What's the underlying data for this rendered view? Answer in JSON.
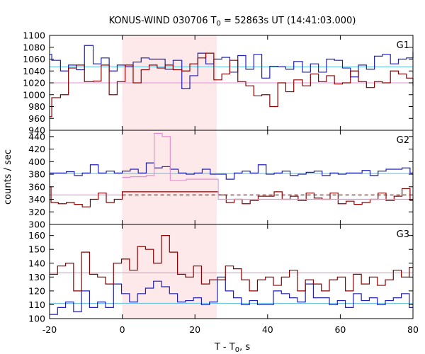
{
  "chart_data": {
    "type": "line",
    "title_main": "KONUS-WIND 030706 T",
    "title_sub": "0",
    "title_rest": " = 52863s UT (14:41:03.000)",
    "xlabel_main": "T - T",
    "xlabel_sub": "0",
    "xlabel_rest": ", s",
    "ylabel": "counts / sec",
    "xlim": [
      -20,
      80
    ],
    "x_ticks": [
      -20,
      0,
      20,
      40,
      60,
      80
    ],
    "x_tick_labels": [
      "-20",
      "0",
      "20",
      "40",
      "60",
      "80"
    ],
    "highlight_interval": [
      0,
      26
    ],
    "colors": {
      "blue": "#1f1fb4",
      "red": "#8b0000",
      "cyan": "#6ec6e6",
      "pink": "#e58fd1",
      "shade": "#fde9ea"
    },
    "panels": [
      {
        "label": "G1",
        "ylim": [
          940,
          1100
        ],
        "y_ticks": [
          940,
          960,
          980,
          1000,
          1020,
          1040,
          1060,
          1080,
          1100
        ],
        "y_tick_labels": [
          "940",
          "960",
          "980",
          "1000",
          "1020",
          "1040",
          "1060",
          "1080",
          "1100"
        ],
        "series": [
          {
            "color": "blue",
            "x": [
              -20,
              -19.4,
              -17,
              -14.8,
              -12.6,
              -10.4,
              -8,
              -5.8,
              -3.6,
              -1.4,
              0.8,
              3,
              5.2,
              7.4,
              9.6,
              11.8,
              14,
              16.4,
              18.6,
              20.8,
              23,
              25.2,
              27.4,
              29.6,
              31.8,
              34,
              36.2,
              38.4,
              40.6,
              42.8,
              45,
              47.2,
              49.6,
              51.8,
              54,
              56.2,
              58.4,
              60.6,
              62.8,
              65,
              67.2,
              69.4,
              71.6,
              73.8,
              76,
              78.2,
              80
            ],
            "y": [
              1068,
              1058,
              1040,
              1050,
              1042,
              1083,
              1052,
              1062,
              1040,
              1050,
              1047,
              1055,
              1062,
              1060,
              1060,
              1043,
              1058,
              1010,
              1032,
              1070,
              1052,
              1060,
              1063,
              1038,
              1066,
              1043,
              1068,
              1028,
              1048,
              1047,
              1043,
              1056,
              1038,
              1052,
              1038,
              1060,
              1058,
              1045,
              1030,
              1050,
              1043,
              1065,
              1068,
              1052,
              1060,
              1062,
              1072
            ]
          },
          {
            "color": "red",
            "x": [
              -20,
              -19.4,
              -17,
              -14.8,
              -12.6,
              -10.4,
              -8,
              -5.8,
              -3.6,
              -1.4,
              0.8,
              3,
              5.2,
              7.4,
              9.6,
              11.8,
              14,
              16.4,
              18.6,
              20.8,
              23,
              25.2,
              27.4,
              29.6,
              31.8,
              34,
              36.2,
              38.4,
              40.6,
              42.8,
              45,
              47.2,
              49.6,
              51.8,
              54,
              56.2,
              58.4,
              60.6,
              62.8,
              65,
              67.2,
              69.4,
              71.6,
              73.8,
              76,
              78.2,
              80
            ],
            "y": [
              963,
              995,
              1000,
              1045,
              1050,
              1022,
              1023,
              1050,
              1000,
              1022,
              1050,
              1020,
              1042,
              1050,
              1045,
              1050,
              1042,
              1040,
              1052,
              1062,
              1070,
              1025,
              1035,
              1058,
              1022,
              1015,
              998,
              1000,
              980,
              1020,
              1005,
              1025,
              1015,
              1035,
              1022,
              1032,
              1018,
              1020,
              1040,
              1022,
              1012,
              1022,
              1020,
              1040,
              1035,
              1028,
              1015
            ]
          }
        ],
        "reference_lines": [
          {
            "color": "cyan",
            "y": 1047,
            "x_from": -20,
            "x_to": 80,
            "dashed": false
          },
          {
            "color": "pink",
            "y": 1020,
            "x_from": -20,
            "x_to": 80,
            "dashed": false
          }
        ]
      },
      {
        "label": "G2",
        "ylim": [
          300,
          450
        ],
        "y_ticks": [
          300,
          320,
          340,
          360,
          380,
          400,
          420,
          440
        ],
        "y_tick_labels": [
          "300",
          "320",
          "340",
          "360",
          "380",
          "400",
          "420",
          "440"
        ],
        "series": [
          {
            "color": "blue",
            "x": [
              -20,
              -17.6,
              -15.4,
              -13.2,
              -11,
              -8.8,
              -6.6,
              -4.4,
              -2.2,
              0,
              2.2,
              4.4,
              6.6,
              8.8,
              11,
              13.2,
              15.4,
              17.6,
              19.8,
              22,
              24.2,
              26.4,
              28.6,
              30.8,
              33,
              35.2,
              37.4,
              39.6,
              41.8,
              44,
              46.2,
              48.4,
              50.6,
              52.8,
              55,
              57.2,
              59.4,
              61.6,
              63.8,
              66,
              68.2,
              70.4,
              72.6,
              74.8,
              77,
              79.2,
              80
            ],
            "y": [
              382,
              382,
              384,
              378,
              382,
              395,
              382,
              385,
              382,
              385,
              388,
              382,
              398,
              390,
              392,
              388,
              382,
              380,
              382,
              388,
              380,
              380,
              372,
              382,
              385,
              382,
              395,
              380,
              382,
              385,
              378,
              380,
              383,
              385,
              378,
              382,
              380,
              382,
              382,
              386,
              378,
              385,
              388,
              388,
              390,
              382,
              382
            ]
          },
          {
            "color": "red",
            "x": [
              -20,
              -19.6,
              -17.6,
              -15.4,
              -13.2,
              -11,
              -8.8,
              -6.6,
              -4.4,
              -2.2,
              0,
              26.4,
              28.6,
              30.8,
              33,
              35.2,
              37.4,
              39.6,
              41.8,
              44,
              46.2,
              48.4,
              50.6,
              52.8,
              55,
              57.2,
              59.4,
              61.6,
              63.8,
              66,
              68.2,
              70.4,
              72.6,
              74.8,
              77,
              79.2,
              80
            ],
            "y": [
              360,
              335,
              333,
              335,
              332,
              328,
              340,
              350,
              335,
              340,
              352,
              347,
              335,
              340,
              333,
              338,
              345,
              345,
              352,
              340,
              345,
              338,
              350,
              342,
              340,
              350,
              333,
              337,
              332,
              335,
              340,
              350,
              338,
              345,
              357,
              338,
              338
            ]
          },
          {
            "color": "pink",
            "x": [
              0,
              2.2,
              6.6,
              8.8,
              11,
              13.2,
              15.4,
              17.6,
              19.8,
              22,
              24.2,
              26.4,
              80
            ],
            "y": [
              375,
              376,
              378,
              445,
              440,
              370,
              370,
              372,
              372,
              372,
              372,
              340,
              343
            ]
          }
        ],
        "reference_lines": [
          {
            "color": "cyan",
            "y": 381,
            "x_from": -20,
            "x_to": 80,
            "dashed": false
          },
          {
            "color": "pink",
            "y": 347,
            "x_from": -20,
            "x_to": 0,
            "dashed": false
          },
          {
            "color": "red",
            "y": 347,
            "x_from": 0,
            "x_to": 80,
            "dashed": true
          }
        ]
      },
      {
        "label": "G3",
        "ylim": [
          100,
          168
        ],
        "y_ticks": [
          100,
          110,
          120,
          130,
          140,
          150,
          160
        ],
        "y_tick_labels": [
          "100",
          "110",
          "120",
          "130",
          "140",
          "150",
          "160"
        ],
        "series": [
          {
            "color": "blue",
            "x": [
              -20,
              -17.8,
              -15.6,
              -13.4,
              -11.2,
              -9,
              -6.8,
              -4.6,
              -2.4,
              -0.2,
              2,
              4.2,
              6.4,
              8.6,
              10.8,
              13,
              15.2,
              17.4,
              19.6,
              21.8,
              24,
              26.2,
              28.4,
              30.6,
              32.8,
              35,
              37.2,
              39.4,
              41.6,
              43.8,
              46,
              48.2,
              50.4,
              52.6,
              54.8,
              57,
              59.2,
              61.4,
              63.6,
              65.8,
              68,
              70.2,
              72.4,
              74.6,
              76.8,
              79,
              80
            ],
            "y": [
              103,
              108,
              112,
              105,
              120,
              108,
              112,
              108,
              125,
              118,
              112,
              118,
              122,
              127,
              123,
              118,
              112,
              113,
              115,
              110,
              112,
              130,
              120,
              115,
              110,
              113,
              110,
              110,
              120,
              118,
              115,
              112,
              125,
              115,
              115,
              110,
              113,
              108,
              118,
              113,
              115,
              110,
              113,
              115,
              118,
              108,
              108
            ]
          },
          {
            "color": "red",
            "x": [
              -20,
              -17.8,
              -15.6,
              -13.4,
              -11.2,
              -9,
              -6.8,
              -4.6,
              -2.4,
              -0.2,
              2,
              4.2,
              6.4,
              8.6,
              10.8,
              13,
              15.2,
              17.4,
              19.6,
              21.8,
              24,
              26.2,
              28.4,
              30.6,
              32.8,
              35,
              37.2,
              39.4,
              41.6,
              43.8,
              46,
              48.2,
              50.4,
              52.6,
              54.8,
              57,
              59.2,
              61.4,
              63.6,
              65.8,
              68,
              70.2,
              72.4,
              74.6,
              76.8,
              79,
              80
            ],
            "y": [
              132,
              138,
              140,
              120,
              148,
              132,
              130,
              125,
              140,
              143,
              135,
              152,
              150,
              140,
              160,
              148,
              132,
              130,
              138,
              125,
              128,
              128,
              138,
              136,
              128,
              120,
              128,
              130,
              124,
              130,
              135,
              120,
              128,
              125,
              120,
              128,
              130,
              120,
              132,
              125,
              130,
              124,
              128,
              135,
              130,
              137,
              137
            ]
          }
        ],
        "reference_lines": [
          {
            "color": "cyan",
            "y": 111,
            "x_from": -20,
            "x_to": 80,
            "dashed": false
          },
          {
            "color": "pink",
            "y": 133,
            "x_from": -20,
            "x_to": 80,
            "dashed": false
          }
        ]
      }
    ]
  }
}
